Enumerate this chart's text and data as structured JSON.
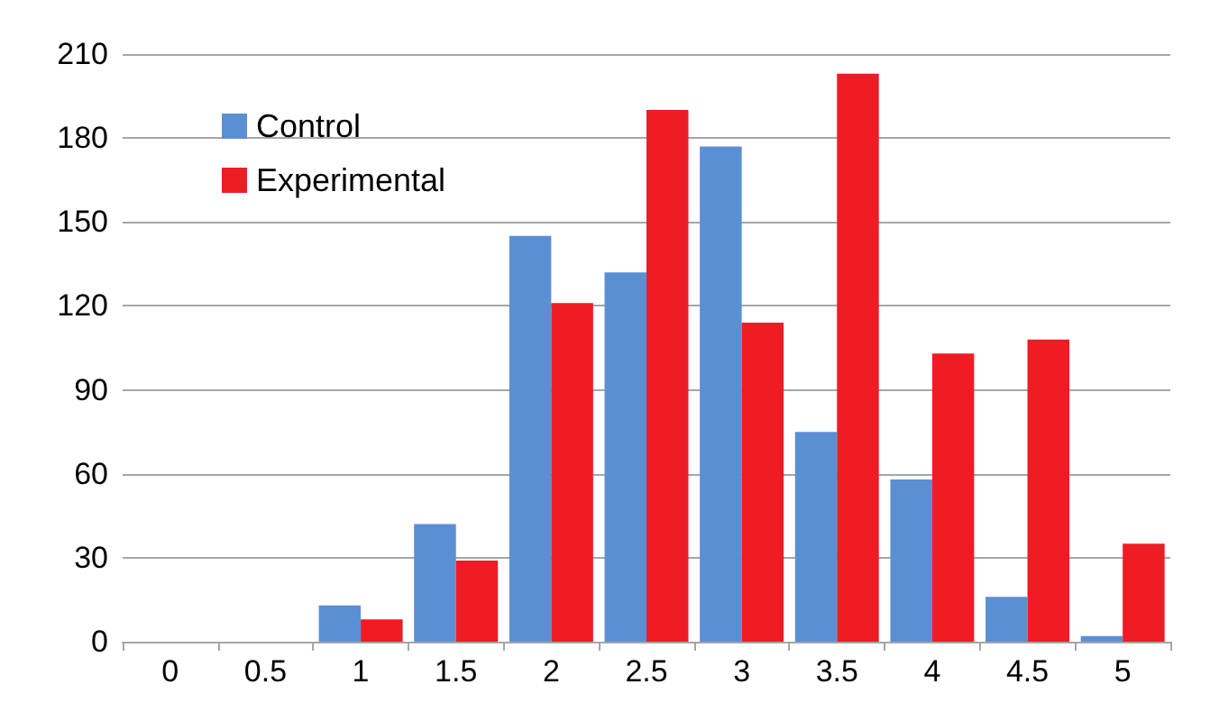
{
  "chart_data": {
    "type": "bar",
    "categories": [
      "0",
      "0.5",
      "1",
      "1.5",
      "2",
      "2.5",
      "3",
      "3.5",
      "4",
      "4.5",
      "5"
    ],
    "series": [
      {
        "name": "Control",
        "color": "#5b8fd4",
        "values": [
          0,
          0,
          13,
          42,
          145,
          132,
          177,
          75,
          58,
          16,
          2
        ]
      },
      {
        "name": "Experimental",
        "color": "#ee1c25",
        "values": [
          0,
          0,
          8,
          29,
          121,
          190,
          114,
          203,
          103,
          108,
          35
        ]
      }
    ],
    "ylim": [
      0,
      210
    ],
    "yticks": [
      0,
      30,
      60,
      90,
      120,
      150,
      180,
      210
    ],
    "grid": "y",
    "legend": "top left"
  }
}
